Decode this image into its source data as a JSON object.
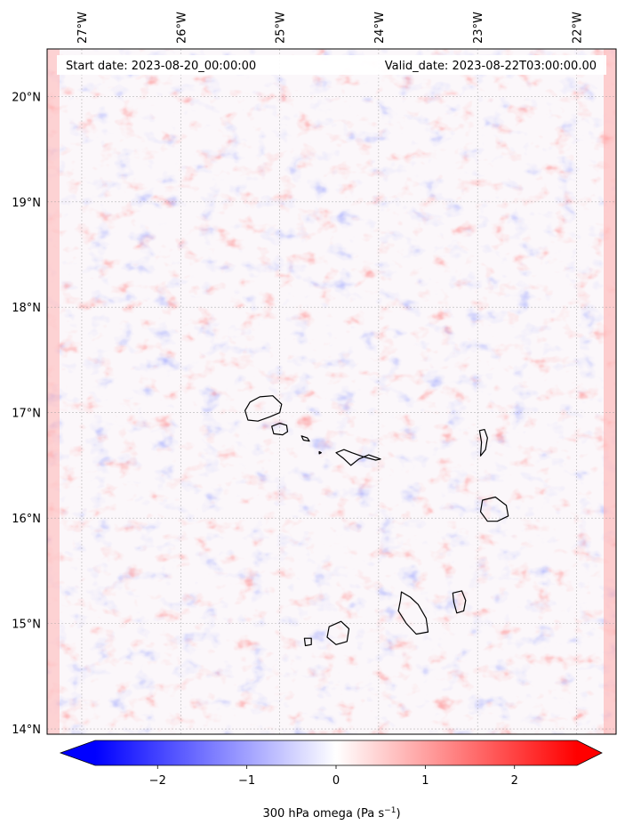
{
  "map": {
    "start_date": "Start date: 2023-08-20_00:00:00",
    "valid_date": "Valid_date: 2023-08-22T03:00:00.00",
    "extent": {
      "lon_min": -27.35,
      "lon_max": -21.6,
      "lat_min": 13.95,
      "lat_max": 20.45
    },
    "lon_ticks": [
      {
        "value": -27,
        "label": "27°W"
      },
      {
        "value": -26,
        "label": "26°W"
      },
      {
        "value": -25,
        "label": "25°W"
      },
      {
        "value": -24,
        "label": "24°W"
      },
      {
        "value": -23,
        "label": "23°W"
      },
      {
        "value": -22,
        "label": "22°W"
      }
    ],
    "lat_ticks": [
      {
        "value": 20,
        "label": "20°N"
      },
      {
        "value": 19,
        "label": "19°N"
      },
      {
        "value": 18,
        "label": "18°N"
      },
      {
        "value": 17,
        "label": "17°N"
      },
      {
        "value": 16,
        "label": "16°N"
      },
      {
        "value": 15,
        "label": "15°N"
      },
      {
        "value": 14,
        "label": "14°N"
      }
    ],
    "gridlines": true,
    "field": "300 hPa omega",
    "colormap": "bwr",
    "islands": [
      {
        "name": "Santo Antão",
        "outline": [
          [
            -25.35,
            17.02
          ],
          [
            -25.3,
            17.1
          ],
          [
            -25.2,
            17.15
          ],
          [
            -25.07,
            17.16
          ],
          [
            -24.98,
            17.08
          ],
          [
            -25.0,
            17.0
          ],
          [
            -25.1,
            16.96
          ],
          [
            -25.22,
            16.92
          ],
          [
            -25.32,
            16.93
          ]
        ]
      },
      {
        "name": "São Vicente",
        "outline": [
          [
            -25.08,
            16.87
          ],
          [
            -25.0,
            16.9
          ],
          [
            -24.93,
            16.88
          ],
          [
            -24.92,
            16.82
          ],
          [
            -24.97,
            16.79
          ],
          [
            -25.06,
            16.8
          ]
        ]
      },
      {
        "name": "Santa Luzia",
        "outline": [
          [
            -24.78,
            16.78
          ],
          [
            -24.72,
            16.76
          ],
          [
            -24.7,
            16.73
          ],
          [
            -24.76,
            16.74
          ]
        ]
      },
      {
        "name": "Raso",
        "outline": [
          [
            -24.6,
            16.63
          ],
          [
            -24.58,
            16.62
          ],
          [
            -24.6,
            16.61
          ]
        ]
      },
      {
        "name": "São Nicolau",
        "outline": [
          [
            -24.43,
            16.62
          ],
          [
            -24.35,
            16.65
          ],
          [
            -24.27,
            16.62
          ],
          [
            -24.15,
            16.58
          ],
          [
            -24.03,
            16.55
          ],
          [
            -23.98,
            16.56
          ],
          [
            -24.1,
            16.6
          ],
          [
            -24.2,
            16.56
          ],
          [
            -24.28,
            16.5
          ],
          [
            -24.36,
            16.57
          ]
        ]
      },
      {
        "name": "Sal",
        "outline": [
          [
            -22.98,
            16.83
          ],
          [
            -22.93,
            16.84
          ],
          [
            -22.9,
            16.76
          ],
          [
            -22.92,
            16.65
          ],
          [
            -22.97,
            16.59
          ],
          [
            -22.96,
            16.72
          ]
        ]
      },
      {
        "name": "Boa Vista",
        "outline": [
          [
            -22.95,
            16.17
          ],
          [
            -22.82,
            16.2
          ],
          [
            -22.71,
            16.12
          ],
          [
            -22.69,
            16.02
          ],
          [
            -22.8,
            15.97
          ],
          [
            -22.9,
            15.97
          ],
          [
            -22.97,
            16.06
          ]
        ]
      },
      {
        "name": "Maio",
        "outline": [
          [
            -23.25,
            15.29
          ],
          [
            -23.16,
            15.31
          ],
          [
            -23.12,
            15.22
          ],
          [
            -23.14,
            15.12
          ],
          [
            -23.21,
            15.1
          ],
          [
            -23.24,
            15.2
          ]
        ]
      },
      {
        "name": "Santiago",
        "outline": [
          [
            -23.77,
            15.3
          ],
          [
            -23.68,
            15.25
          ],
          [
            -23.6,
            15.18
          ],
          [
            -23.52,
            15.05
          ],
          [
            -23.5,
            14.92
          ],
          [
            -23.62,
            14.9
          ],
          [
            -23.72,
            15.0
          ],
          [
            -23.8,
            15.12
          ],
          [
            -23.78,
            15.22
          ]
        ]
      },
      {
        "name": "Fogo",
        "outline": [
          [
            -24.5,
            14.97
          ],
          [
            -24.38,
            15.02
          ],
          [
            -24.3,
            14.95
          ],
          [
            -24.32,
            14.83
          ],
          [
            -24.43,
            14.8
          ],
          [
            -24.52,
            14.87
          ]
        ]
      },
      {
        "name": "Brava",
        "outline": [
          [
            -24.75,
            14.86
          ],
          [
            -24.68,
            14.86
          ],
          [
            -24.68,
            14.8
          ],
          [
            -24.74,
            14.79
          ]
        ]
      }
    ]
  },
  "colorbar": {
    "label": "300 hPa omega (Pa s",
    "label_exp": "−1",
    "label_close": ")",
    "min": -2.7,
    "max": 2.7,
    "ticks": [
      {
        "value": -2,
        "label": "−2"
      },
      {
        "value": -1,
        "label": "−1"
      },
      {
        "value": 0,
        "label": "0"
      },
      {
        "value": 1,
        "label": "1"
      },
      {
        "value": 2,
        "label": "2"
      }
    ],
    "extend": "both",
    "low_color": "#0000ff",
    "mid_color": "#ffffff",
    "high_color": "#ff0000"
  }
}
